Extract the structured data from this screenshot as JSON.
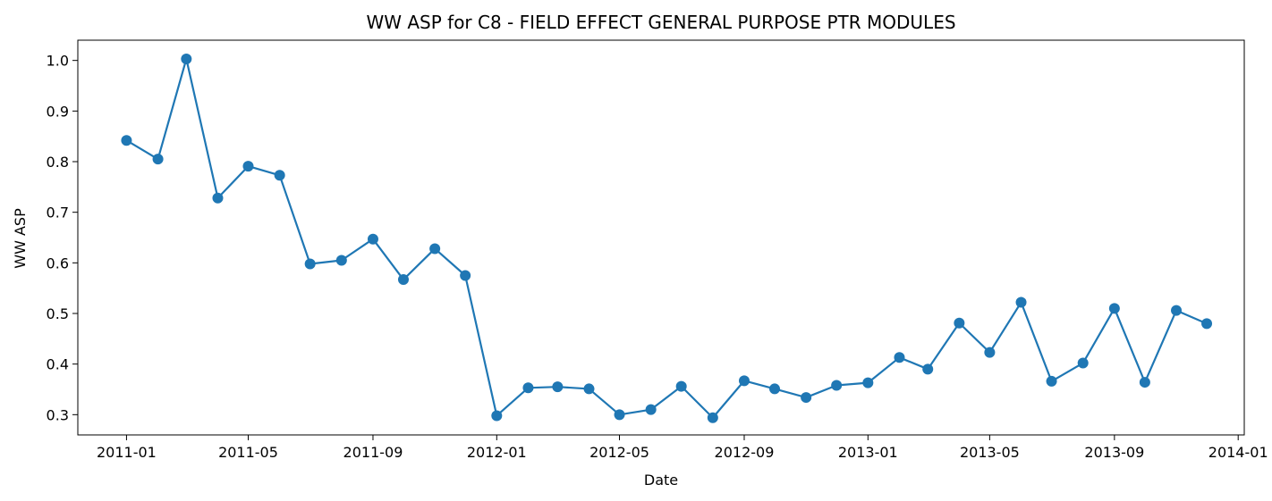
{
  "chart_data": {
    "type": "line",
    "title": "WW ASP for C8 - FIELD EFFECT GENERAL PURPOSE PTR MODULES",
    "xlabel": "Date",
    "ylabel": "WW ASP",
    "x_ticks": [
      "2011-01",
      "2011-05",
      "2011-09",
      "2012-01",
      "2012-05",
      "2012-09",
      "2013-01",
      "2013-05",
      "2013-09",
      "2014-01"
    ],
    "y_ticks": [
      "0.3",
      "0.4",
      "0.5",
      "0.6",
      "0.7",
      "0.8",
      "0.9",
      "1.0"
    ],
    "xlim": [
      "2010-11-14",
      "2014-01-07"
    ],
    "ylim": [
      0.26,
      1.04
    ],
    "grid": false,
    "color": "#1f77b4",
    "series": [
      {
        "x": [
          "2011-01",
          "2011-02",
          "2011-03",
          "2011-04",
          "2011-05",
          "2011-06",
          "2011-07",
          "2011-08",
          "2011-09",
          "2011-10",
          "2011-11",
          "2011-12",
          "2012-01",
          "2012-02",
          "2012-03",
          "2012-04",
          "2012-05",
          "2012-06",
          "2012-07",
          "2012-08",
          "2012-09",
          "2012-10",
          "2012-11",
          "2012-12",
          "2013-01",
          "2013-02",
          "2013-03",
          "2013-04",
          "2013-05",
          "2013-06",
          "2013-07",
          "2013-08",
          "2013-09",
          "2013-10",
          "2013-11",
          "2013-12"
        ],
        "values": [
          0.842,
          0.805,
          1.003,
          0.728,
          0.791,
          0.773,
          0.598,
          0.605,
          0.647,
          0.567,
          0.628,
          0.575,
          0.298,
          0.353,
          0.355,
          0.351,
          0.3,
          0.31,
          0.356,
          0.294,
          0.367,
          0.351,
          0.334,
          0.358,
          0.363,
          0.413,
          0.39,
          0.481,
          0.423,
          0.522,
          0.366,
          0.402,
          0.51,
          0.364,
          0.506,
          0.48
        ]
      }
    ]
  }
}
